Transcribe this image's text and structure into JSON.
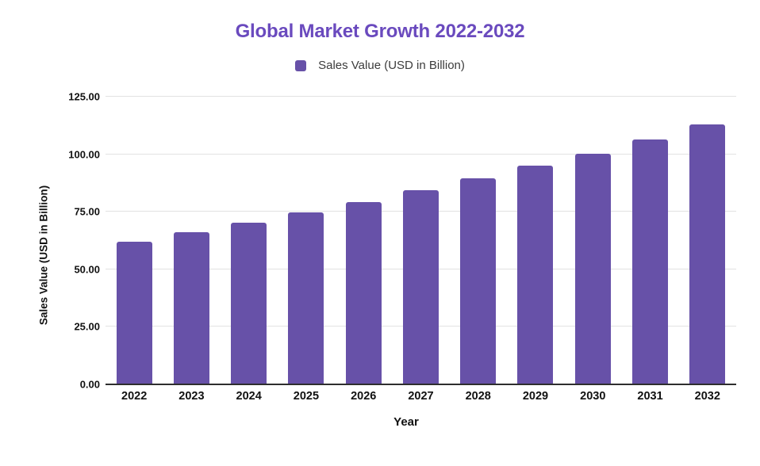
{
  "page": {
    "background": "#ffffff"
  },
  "chart_data": {
    "type": "bar",
    "title": "Global Market Growth 2022-2032",
    "title_color": "#6a4abe",
    "legend_label": "Sales Value (USD in Billion)",
    "legend_position": "top",
    "bar_color": "#6751a8",
    "categories": [
      "2022",
      "2023",
      "2024",
      "2025",
      "2026",
      "2027",
      "2028",
      "2029",
      "2030",
      "2031",
      "2032"
    ],
    "values": [
      62.1,
      66.0,
      70.3,
      74.8,
      79.1,
      84.2,
      89.5,
      95.0,
      100.3,
      106.4,
      113.1
    ],
    "xlabel": "Year",
    "ylabel": "Sales Value (USD in Billion)",
    "ylim": [
      0,
      125
    ],
    "ytick_step": 25,
    "ytick_labels": [
      "0.00",
      "25.00",
      "50.00",
      "75.00",
      "100.00",
      "125.00"
    ],
    "grid": true,
    "gridline_color": "#e2e2e2",
    "axis_line_color": "#2e2e2e",
    "tick_label_color": "#111111",
    "legend_text_color": "#3c3c3c"
  }
}
